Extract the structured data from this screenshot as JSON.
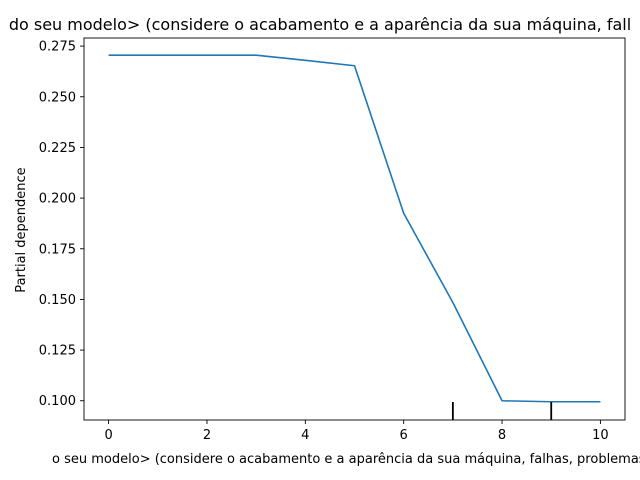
{
  "chart_data": {
    "type": "line",
    "title": "do seu modelo> (considere o acabamento e a aparência da sua máquina, fall",
    "xlabel": "o seu modelo> (considere o acabamento e a aparência da sua máquina, falhas, problemas d",
    "ylabel": "Partial dependence",
    "xlim": [
      -0.5,
      10.5
    ],
    "ylim": [
      0.0905,
      0.279
    ],
    "x_ticks": [
      0,
      2,
      4,
      6,
      8,
      10
    ],
    "x_tick_labels": [
      "0",
      "2",
      "4",
      "6",
      "8",
      "10"
    ],
    "y_ticks": [
      0.1,
      0.125,
      0.15,
      0.175,
      0.2,
      0.225,
      0.25,
      0.275
    ],
    "y_tick_labels": [
      "0.100",
      "0.125",
      "0.150",
      "0.175",
      "0.200",
      "0.225",
      "0.250",
      "0.275"
    ],
    "grid": false,
    "series": [
      {
        "color": "#1f77b4",
        "x": [
          0,
          1,
          2,
          3,
          4,
          5,
          6,
          7,
          8,
          9,
          10
        ],
        "y": [
          0.2705,
          0.2705,
          0.2705,
          0.2705,
          0.268,
          0.2653,
          0.1925,
          0.1485,
          0.1,
          0.0995,
          0.0995
        ]
      }
    ],
    "rug_x": [
      7,
      9
    ],
    "rug_color": "#000000"
  }
}
